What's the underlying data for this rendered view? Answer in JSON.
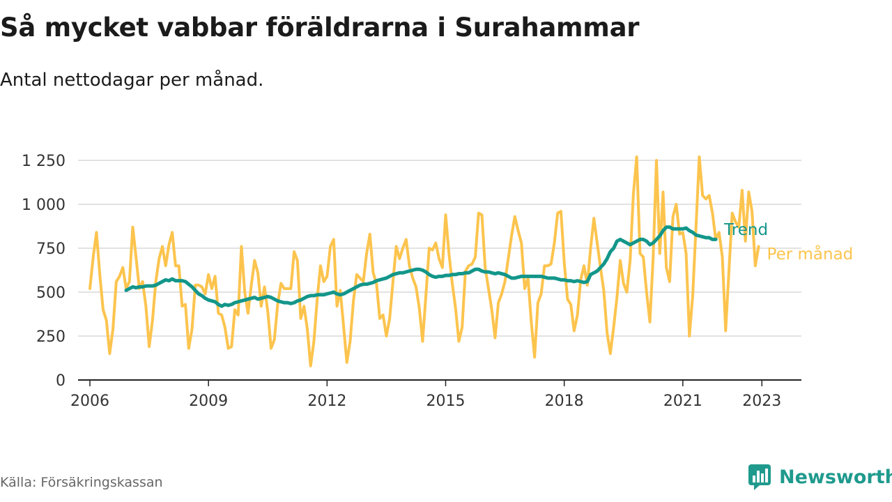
{
  "title": "Så mycket vabbar föräldrarna i Surahammar",
  "subtitle": "Antal nettodagar per månad.",
  "source": "Källa: Försäkringskassan",
  "brand": {
    "name": "Newsworthy",
    "logo_icon": "newsworthy-bar-chart-logo-icon"
  },
  "colors": {
    "per_month": "#fcc44e",
    "trend": "#13968a",
    "grid": "#d9d9d9",
    "axis": "#222222",
    "brand": "#1f9a8d"
  },
  "chart_data": {
    "type": "line",
    "title": "Så mycket vabbar föräldrarna i Surahammar",
    "subtitle": "Antal nettodagar per månad.",
    "xlabel": "",
    "ylabel": "",
    "xlim": [
      2005.7,
      2024.0
    ],
    "ylim": [
      0,
      1250
    ],
    "x_ticks": [
      {
        "value": 2006,
        "label": "2006"
      },
      {
        "value": 2009,
        "label": "2009"
      },
      {
        "value": 2012,
        "label": "2012"
      },
      {
        "value": 2015,
        "label": "2015"
      },
      {
        "value": 2018,
        "label": "2018"
      },
      {
        "value": 2021,
        "label": "2021"
      },
      {
        "value": 2023,
        "label": "2023"
      }
    ],
    "y_ticks": [
      {
        "value": 0,
        "label": "0"
      },
      {
        "value": 250,
        "label": "250"
      },
      {
        "value": 500,
        "label": "500"
      },
      {
        "value": 750,
        "label": "750"
      },
      {
        "value": 1000,
        "label": "1 000"
      },
      {
        "value": 1250,
        "label": "1 250"
      }
    ],
    "grid": true,
    "legend": "direct labels at the right end of each line",
    "series": [
      {
        "name": "Per månad",
        "start": "2006-01",
        "frequency": "monthly",
        "color": "#fcc44e",
        "values": [
          520,
          700,
          840,
          600,
          400,
          340,
          150,
          290,
          560,
          590,
          640,
          520,
          560,
          870,
          700,
          520,
          560,
          420,
          190,
          340,
          560,
          690,
          760,
          650,
          770,
          840,
          650,
          650,
          420,
          430,
          180,
          290,
          540,
          540,
          530,
          490,
          600,
          520,
          590,
          380,
          370,
          300,
          180,
          190,
          400,
          370,
          760,
          500,
          380,
          540,
          680,
          610,
          420,
          530,
          390,
          180,
          230,
          430,
          550,
          520,
          520,
          520,
          730,
          680,
          350,
          420,
          290,
          80,
          220,
          460,
          650,
          560,
          590,
          760,
          800,
          420,
          510,
          310,
          100,
          220,
          450,
          600,
          580,
          560,
          720,
          830,
          610,
          550,
          350,
          370,
          250,
          350,
          560,
          760,
          690,
          750,
          800,
          650,
          580,
          530,
          410,
          220,
          480,
          750,
          740,
          780,
          690,
          640,
          940,
          720,
          550,
          410,
          220,
          300,
          620,
          650,
          660,
          700,
          950,
          940,
          640,
          520,
          400,
          240,
          440,
          490,
          560,
          690,
          820,
          930,
          850,
          780,
          520,
          580,
          330,
          130,
          440,
          490,
          650,
          650,
          660,
          780,
          950,
          960,
          670,
          460,
          430,
          280,
          370,
          570,
          650,
          540,
          750,
          920,
          780,
          640,
          510,
          270,
          150,
          300,
          470,
          680,
          550,
          500,
          680,
          1060,
          1270,
          720,
          700,
          500,
          330,
          700,
          1250,
          720,
          1070,
          640,
          560,
          930,
          1000,
          830,
          840,
          720,
          250,
          480,
          870,
          1270,
          1050,
          1030,
          1050,
          950,
          800,
          840,
          700,
          280,
          620,
          950,
          900,
          870,
          1080,
          790,
          1070,
          960,
          650,
          760
        ]
      },
      {
        "name": "Trend",
        "start": "2006-12",
        "frequency": "monthly",
        "color": "#13968a",
        "values": [
          510,
          520,
          530,
          525,
          530,
          530,
          535,
          535,
          535,
          540,
          550,
          560,
          570,
          565,
          575,
          565,
          565,
          565,
          560,
          545,
          530,
          510,
          490,
          480,
          465,
          455,
          450,
          445,
          430,
          420,
          430,
          425,
          430,
          440,
          445,
          450,
          455,
          460,
          465,
          470,
          460,
          465,
          470,
          475,
          470,
          460,
          450,
          445,
          440,
          440,
          435,
          440,
          450,
          455,
          465,
          475,
          480,
          480,
          485,
          485,
          485,
          490,
          495,
          500,
          490,
          485,
          490,
          500,
          510,
          520,
          530,
          540,
          545,
          545,
          550,
          555,
          565,
          570,
          575,
          580,
          590,
          600,
          605,
          610,
          610,
          615,
          620,
          625,
          630,
          630,
          625,
          615,
          600,
          590,
          585,
          590,
          590,
          595,
          595,
          600,
          600,
          605,
          605,
          610,
          610,
          620,
          630,
          630,
          620,
          615,
          615,
          610,
          605,
          610,
          605,
          600,
          590,
          580,
          580,
          585,
          590,
          590,
          590,
          590,
          590,
          590,
          590,
          585,
          580,
          580,
          580,
          575,
          570,
          570,
          565,
          565,
          560,
          565,
          560,
          555,
          560,
          600,
          610,
          620,
          640,
          660,
          690,
          730,
          750,
          790,
          800,
          790,
          780,
          770,
          780,
          790,
          800,
          800,
          790,
          770,
          780,
          800,
          820,
          850,
          870,
          870,
          860,
          860,
          860,
          860,
          865,
          850,
          840,
          825,
          820,
          815,
          810,
          810,
          800,
          800
        ]
      }
    ]
  }
}
